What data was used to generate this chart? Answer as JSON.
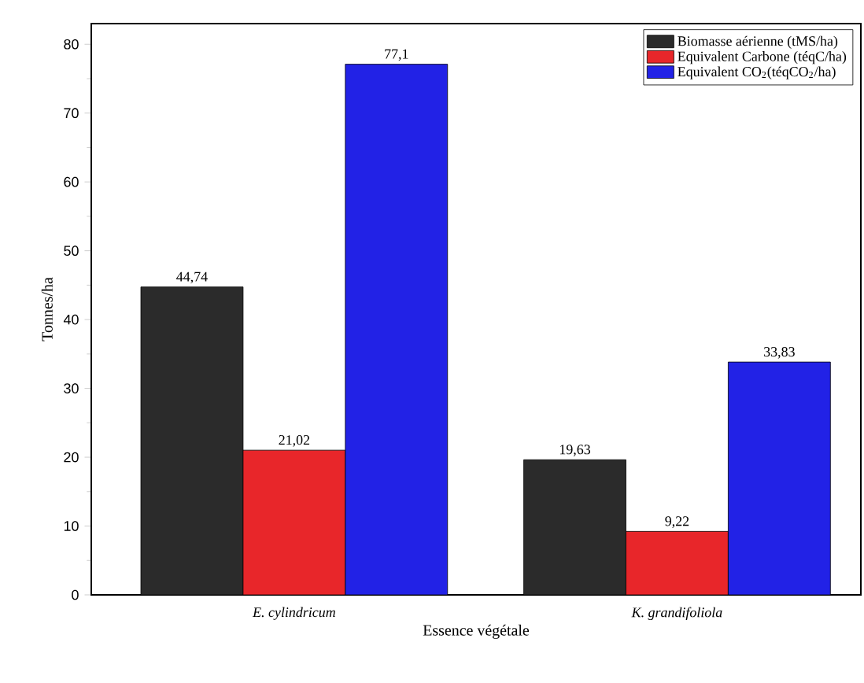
{
  "chart_data": {
    "type": "bar",
    "xlabel": "Essence végétale",
    "ylabel": "Tonnes/ha",
    "categories": [
      "*E. cylindricum*",
      "*K. grandifoliola*"
    ],
    "series": [
      {
        "name": "Biomasse aérienne (tMS/ha)",
        "color": "#2b2b2b",
        "values": [
          44.74,
          19.63
        ],
        "value_labels": [
          "44,74",
          "19,63"
        ]
      },
      {
        "name": "Equivalent Carbone (téqC/ha)",
        "color": "#e8262a",
        "values": [
          21.02,
          9.22
        ],
        "value_labels": [
          "21,02",
          "9,22"
        ]
      },
      {
        "name": "Equivalent CO$_{2}$(téqCO$_{2}$/ha)",
        "color": "#2222e6",
        "values": [
          77.1,
          33.83
        ],
        "value_labels": [
          "77,1",
          "33,83"
        ]
      }
    ],
    "ylim": [
      0,
      83
    ],
    "yticks": [
      0,
      10,
      20,
      30,
      40,
      50,
      60,
      70,
      80
    ],
    "legend": "top right"
  }
}
